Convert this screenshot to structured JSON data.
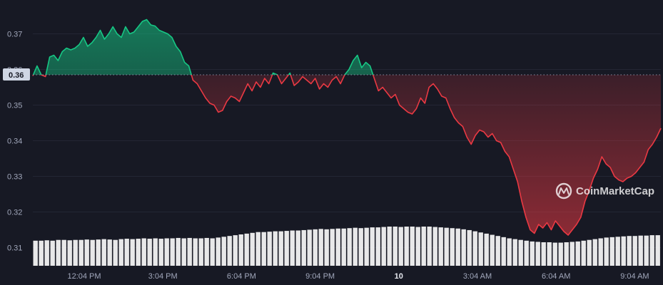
{
  "chart_data": {
    "type": "line",
    "y_ticks": [
      "0.37",
      "0.36",
      "0.35",
      "0.34",
      "0.33",
      "0.32",
      "0.31"
    ],
    "y_tick_values": [
      0.37,
      0.36,
      0.35,
      0.34,
      0.33,
      0.32,
      0.31
    ],
    "ylim": [
      0.3095,
      0.3755
    ],
    "x_ticks": [
      "12:04 PM",
      "3:04 PM",
      "6:04 PM",
      "9:04 PM",
      "10",
      "3:04 AM",
      "6:04 AM",
      "9:04 AM"
    ],
    "bold_x_tick": "10",
    "reference_price": 0.3585,
    "reference_label": "0.36",
    "colors": {
      "up": "#16c784",
      "down": "#ea3943",
      "grid": "#232634",
      "volume": "#ffffff",
      "background": "#171924",
      "label_bg": "#cfd6e4"
    },
    "watermark": "CoinMarketCap",
    "price": [
      0.3582,
      0.361,
      0.3585,
      0.358,
      0.3635,
      0.364,
      0.3625,
      0.365,
      0.366,
      0.3655,
      0.366,
      0.367,
      0.369,
      0.3665,
      0.3675,
      0.369,
      0.371,
      0.3685,
      0.37,
      0.372,
      0.37,
      0.369,
      0.372,
      0.37,
      0.3705,
      0.372,
      0.3735,
      0.374,
      0.3725,
      0.3722,
      0.371,
      0.3705,
      0.37,
      0.369,
      0.3665,
      0.365,
      0.362,
      0.361,
      0.357,
      0.356,
      0.354,
      0.352,
      0.3505,
      0.35,
      0.348,
      0.3485,
      0.351,
      0.3525,
      0.352,
      0.351,
      0.3535,
      0.356,
      0.354,
      0.3565,
      0.355,
      0.3575,
      0.356,
      0.359,
      0.3585,
      0.356,
      0.3575,
      0.359,
      0.3555,
      0.3565,
      0.358,
      0.357,
      0.356,
      0.3575,
      0.3545,
      0.356,
      0.355,
      0.357,
      0.358,
      0.356,
      0.3585,
      0.36,
      0.3625,
      0.364,
      0.3605,
      0.362,
      0.361,
      0.3575,
      0.354,
      0.355,
      0.3535,
      0.352,
      0.353,
      0.35,
      0.349,
      0.348,
      0.3475,
      0.349,
      0.352,
      0.3505,
      0.355,
      0.356,
      0.3545,
      0.3525,
      0.352,
      0.349,
      0.3465,
      0.345,
      0.344,
      0.341,
      0.339,
      0.3415,
      0.343,
      0.3425,
      0.341,
      0.342,
      0.34,
      0.3395,
      0.337,
      0.3355,
      0.332,
      0.3285,
      0.323,
      0.3185,
      0.315,
      0.314,
      0.3165,
      0.3155,
      0.317,
      0.315,
      0.3175,
      0.316,
      0.3145,
      0.3135,
      0.315,
      0.3165,
      0.3185,
      0.323,
      0.326,
      0.3295,
      0.332,
      0.3355,
      0.3335,
      0.3325,
      0.33,
      0.329,
      0.3285,
      0.3295,
      0.33,
      0.331,
      0.3325,
      0.334,
      0.3375,
      0.339,
      0.341,
      0.3435
    ],
    "volume_rel": [
      0.64,
      0.64,
      0.65,
      0.64,
      0.66,
      0.66,
      0.65,
      0.66,
      0.66,
      0.67,
      0.66,
      0.67,
      0.68,
      0.67,
      0.66,
      0.68,
      0.69,
      0.68,
      0.69,
      0.7,
      0.69,
      0.7,
      0.69,
      0.7,
      0.7,
      0.71,
      0.7,
      0.71,
      0.7,
      0.7,
      0.71,
      0.7,
      0.72,
      0.74,
      0.76,
      0.78,
      0.8,
      0.82,
      0.84,
      0.86,
      0.86,
      0.87,
      0.88,
      0.88,
      0.89,
      0.9,
      0.9,
      0.91,
      0.92,
      0.93,
      0.94,
      0.93,
      0.94,
      0.95,
      0.95,
      0.96,
      0.97,
      0.96,
      0.97,
      0.98,
      0.98,
      0.99,
      1.0,
      1.0,
      0.99,
      1.0,
      1.0,
      0.99,
      1.0,
      1.0,
      0.99,
      0.98,
      0.97,
      0.96,
      0.95,
      0.93,
      0.91,
      0.88,
      0.85,
      0.82,
      0.79,
      0.76,
      0.73,
      0.7,
      0.68,
      0.66,
      0.64,
      0.62,
      0.61,
      0.6,
      0.6,
      0.59,
      0.59,
      0.6,
      0.61,
      0.62,
      0.64,
      0.66,
      0.68,
      0.7,
      0.72,
      0.73,
      0.74,
      0.75,
      0.76,
      0.76,
      0.77,
      0.77,
      0.78,
      0.78
    ]
  }
}
